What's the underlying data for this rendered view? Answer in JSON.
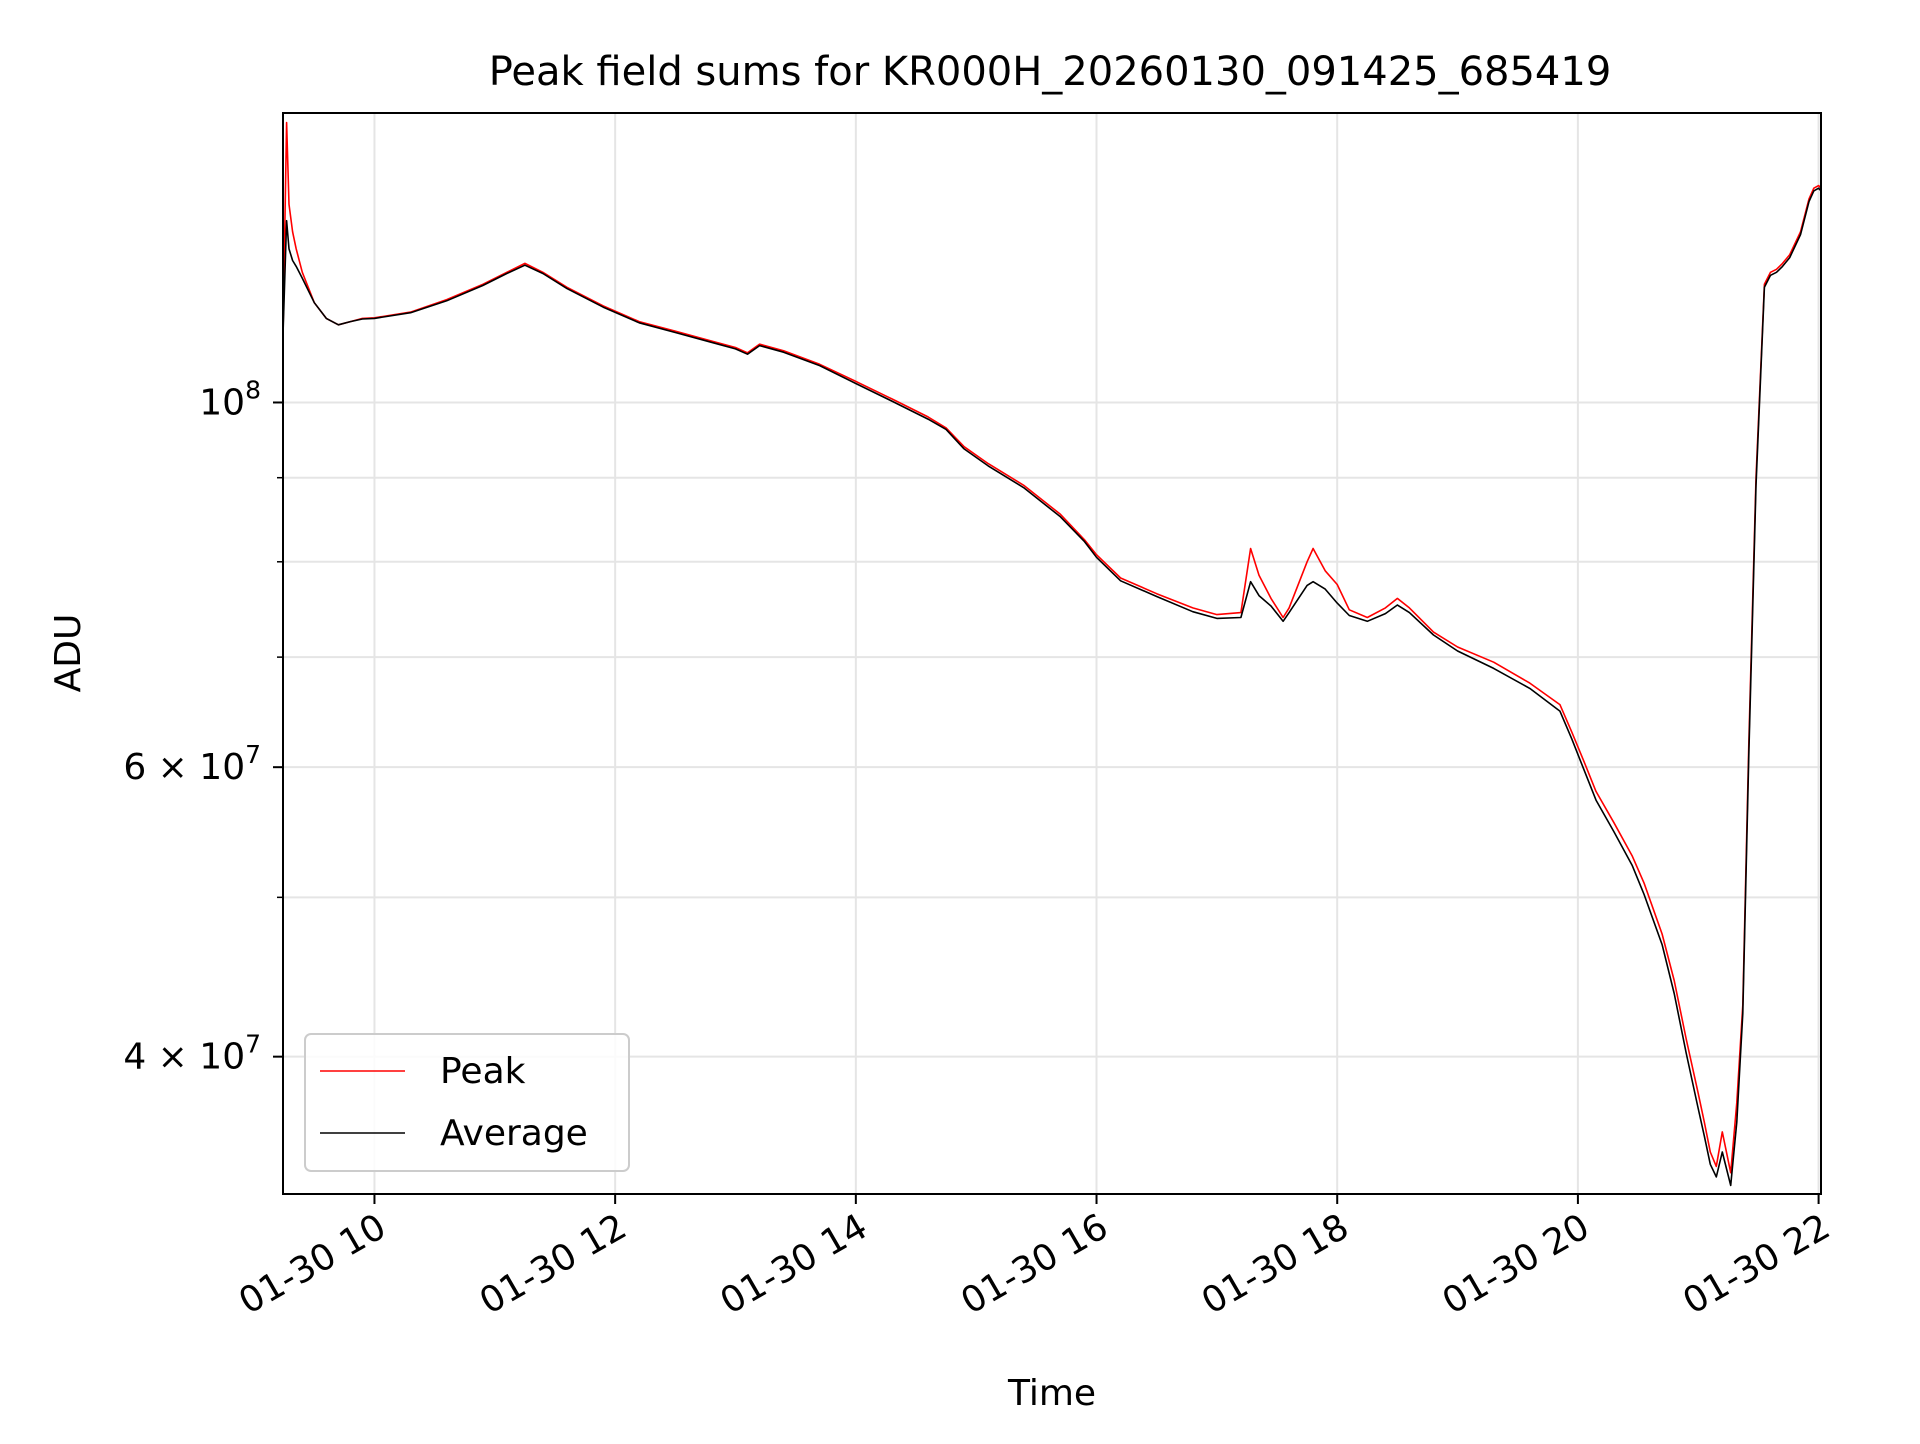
{
  "chart_data": {
    "type": "line",
    "title": "Peak field sums for KR000H_20260130_091425_685419",
    "xlabel": "Time",
    "ylabel": "ADU",
    "x_unit": "hours since 01-30 00:00",
    "xlim": [
      9.24,
      22.02
    ],
    "ylim": [
      33000000,
      150000000
    ],
    "yscale": "log",
    "grid": true,
    "legend_position": "lower-left",
    "x_ticks": [
      {
        "value": 10,
        "label": "01-30 10"
      },
      {
        "value": 12,
        "label": "01-30 12"
      },
      {
        "value": 14,
        "label": "01-30 14"
      },
      {
        "value": 16,
        "label": "01-30 16"
      },
      {
        "value": 18,
        "label": "01-30 18"
      },
      {
        "value": 20,
        "label": "01-30 20"
      },
      {
        "value": 22,
        "label": "01-30 22"
      }
    ],
    "y_major_ticks": [
      {
        "value": 100000000,
        "base": "10",
        "exp": "8"
      },
      {
        "value": 60000000,
        "base": "6 × 10",
        "exp": "7"
      },
      {
        "value": 40000000,
        "base": "4 × 10",
        "exp": "7"
      }
    ],
    "y_minor_ticks": [
      50000000,
      70000000,
      80000000,
      90000000
    ],
    "series": [
      {
        "name": "Peak",
        "color": "#ff0000",
        "x": [
          9.24,
          9.27,
          9.29,
          9.32,
          9.35,
          9.4,
          9.5,
          9.6,
          9.7,
          9.8,
          9.9,
          10.0,
          10.3,
          10.6,
          10.9,
          11.1,
          11.25,
          11.4,
          11.6,
          11.9,
          12.2,
          12.5,
          12.8,
          13.0,
          13.1,
          13.2,
          13.4,
          13.7,
          14.0,
          14.3,
          14.6,
          14.75,
          14.9,
          15.1,
          15.4,
          15.7,
          15.9,
          16.0,
          16.2,
          16.5,
          16.8,
          17.0,
          17.2,
          17.28,
          17.35,
          17.45,
          17.55,
          17.6,
          17.75,
          17.8,
          17.9,
          18.0,
          18.1,
          18.25,
          18.4,
          18.5,
          18.6,
          18.8,
          19.0,
          19.3,
          19.6,
          19.85,
          19.95,
          20.05,
          20.15,
          20.3,
          20.45,
          20.55,
          20.7,
          20.8,
          20.9,
          21.0,
          21.05,
          21.1,
          21.15,
          21.2,
          21.27,
          21.32,
          21.37,
          21.42,
          21.48,
          21.55,
          21.6,
          21.65,
          21.7,
          21.76,
          21.85,
          21.92,
          21.96,
          22.0,
          22.02
        ],
        "y": [
          110000000,
          148000000,
          132000000,
          127000000,
          124000000,
          120000000,
          115000000,
          112500000,
          111500000,
          112000000,
          112500000,
          112600000,
          113500000,
          115500000,
          118000000,
          120000000,
          121500000,
          120000000,
          117500000,
          114500000,
          112000000,
          110500000,
          109000000,
          108000000,
          107200000,
          108500000,
          107500000,
          105500000,
          103000000,
          100500000,
          98000000,
          96500000,
          94000000,
          91800000,
          89000000,
          85500000,
          82500000,
          80800000,
          78200000,
          76500000,
          75000000,
          74300000,
          74500000,
          81500000,
          78500000,
          76000000,
          74000000,
          75000000,
          80000000,
          81500000,
          79000000,
          77500000,
          74800000,
          74000000,
          75000000,
          76000000,
          75000000,
          72500000,
          71000000,
          69500000,
          67500000,
          65500000,
          63000000,
          60500000,
          58000000,
          55500000,
          53000000,
          51000000,
          47500000,
          44500000,
          41000000,
          38000000,
          36500000,
          35000000,
          34300000,
          36000000,
          34000000,
          37500000,
          43000000,
          62000000,
          90000000,
          118000000,
          120000000,
          120500000,
          121500000,
          123000000,
          127000000,
          133000000,
          135000000,
          135500000,
          135000000
        ]
      },
      {
        "name": "Average",
        "color": "#000000",
        "x": [
          9.24,
          9.27,
          9.29,
          9.32,
          9.35,
          9.4,
          9.5,
          9.6,
          9.7,
          9.8,
          9.9,
          10.0,
          10.3,
          10.6,
          10.9,
          11.1,
          11.25,
          11.4,
          11.6,
          11.9,
          12.2,
          12.5,
          12.8,
          13.0,
          13.1,
          13.2,
          13.4,
          13.7,
          14.0,
          14.3,
          14.6,
          14.75,
          14.9,
          15.1,
          15.4,
          15.7,
          15.9,
          16.0,
          16.2,
          16.5,
          16.8,
          17.0,
          17.2,
          17.28,
          17.35,
          17.45,
          17.55,
          17.6,
          17.75,
          17.8,
          17.9,
          18.0,
          18.1,
          18.25,
          18.4,
          18.5,
          18.6,
          18.8,
          19.0,
          19.3,
          19.6,
          19.85,
          19.95,
          20.05,
          20.15,
          20.3,
          20.45,
          20.55,
          20.7,
          20.8,
          20.9,
          21.0,
          21.05,
          21.1,
          21.15,
          21.2,
          21.27,
          21.32,
          21.37,
          21.42,
          21.48,
          21.55,
          21.6,
          21.65,
          21.7,
          21.76,
          21.85,
          21.92,
          21.96,
          22.0,
          22.02
        ],
        "y": [
          110000000,
          129000000,
          124000000,
          122000000,
          121000000,
          119000000,
          115000000,
          112500000,
          111500000,
          112000000,
          112400000,
          112500000,
          113400000,
          115300000,
          117800000,
          119800000,
          121200000,
          119800000,
          117300000,
          114300000,
          111800000,
          110300000,
          108800000,
          107800000,
          107000000,
          108300000,
          107300000,
          105300000,
          102700000,
          100200000,
          97700000,
          96300000,
          93700000,
          91500000,
          88700000,
          85200000,
          82300000,
          80500000,
          77900000,
          76200000,
          74600000,
          73900000,
          74000000,
          77800000,
          76300000,
          75200000,
          73600000,
          74500000,
          77400000,
          77800000,
          77000000,
          75500000,
          74200000,
          73600000,
          74400000,
          75300000,
          74500000,
          72200000,
          70600000,
          68900000,
          67000000,
          64900000,
          62400000,
          59800000,
          57300000,
          54800000,
          52300000,
          50200000,
          46800000,
          43700000,
          40200000,
          37200000,
          35800000,
          34400000,
          33800000,
          35000000,
          33400000,
          36500000,
          42500000,
          61000000,
          89000000,
          117500000,
          119500000,
          120000000,
          121000000,
          122500000,
          126500000,
          132500000,
          134500000,
          135000000,
          134500000
        ]
      }
    ]
  }
}
